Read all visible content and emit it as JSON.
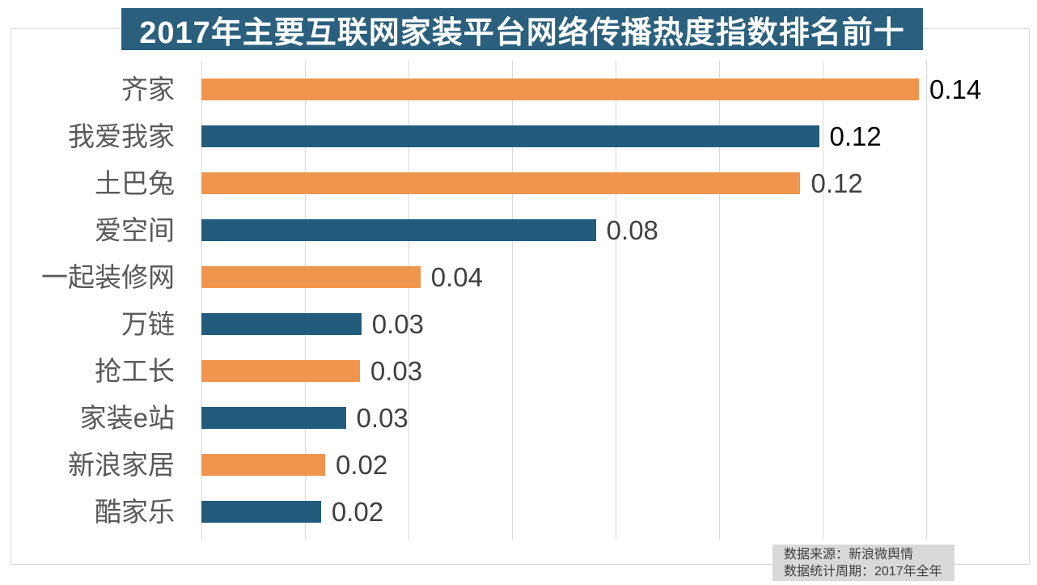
{
  "colors": {
    "title_bg": "#2A607E",
    "title_text": "#FFFFFF",
    "orange": "#F0954E",
    "blue": "#215C7D",
    "grid": "#D9D9D9",
    "box_border": "#D9D9D9",
    "category_label": "#595959",
    "value_default": "#404040",
    "value_emphasis": "#000000",
    "note_bg": "#D9D9D9",
    "note_text": "#404040"
  },
  "source_note": {
    "line1": "数据来源：新浪微舆情",
    "line2": "数据统计周期：2017年全年"
  },
  "chart_data": {
    "type": "bar",
    "orientation": "horizontal",
    "title": "2017年主要互联网家装平台网络传播热度指数排名前十",
    "categories": [
      "齐家",
      "我爱我家",
      "土巴兔",
      "爱空间",
      "一起装修网",
      "万链",
      "抢工长",
      "家装e站",
      "新浪家居",
      "酷家乐"
    ],
    "values": [
      0.14,
      0.12,
      0.12,
      0.08,
      0.04,
      0.03,
      0.03,
      0.03,
      0.02,
      0.02
    ],
    "value_labels": [
      "0.14",
      "0.12",
      "0.12",
      "0.08",
      "0.04",
      "0.03",
      "0.03",
      "0.03",
      "0.02",
      "0.02"
    ],
    "bar_values": [
      0.1386,
      0.1193,
      0.1157,
      0.0762,
      0.0423,
      0.0309,
      0.0306,
      0.0279,
      0.0239,
      0.0231
    ],
    "bar_colors": [
      "#F0954E",
      "#215C7D",
      "#F0954E",
      "#215C7D",
      "#F0954E",
      "#215C7D",
      "#F0954E",
      "#215C7D",
      "#F0954E",
      "#215C7D"
    ],
    "value_label_colors": [
      "#000000",
      "#000000",
      "#404040",
      "#404040",
      "#404040",
      "#404040",
      "#404040",
      "#404040",
      "#404040",
      "#404040"
    ],
    "xlabel": "",
    "ylabel": "",
    "xlim": [
      0,
      0.16
    ],
    "grid_step": 0.02,
    "grid": true,
    "legend": false
  }
}
